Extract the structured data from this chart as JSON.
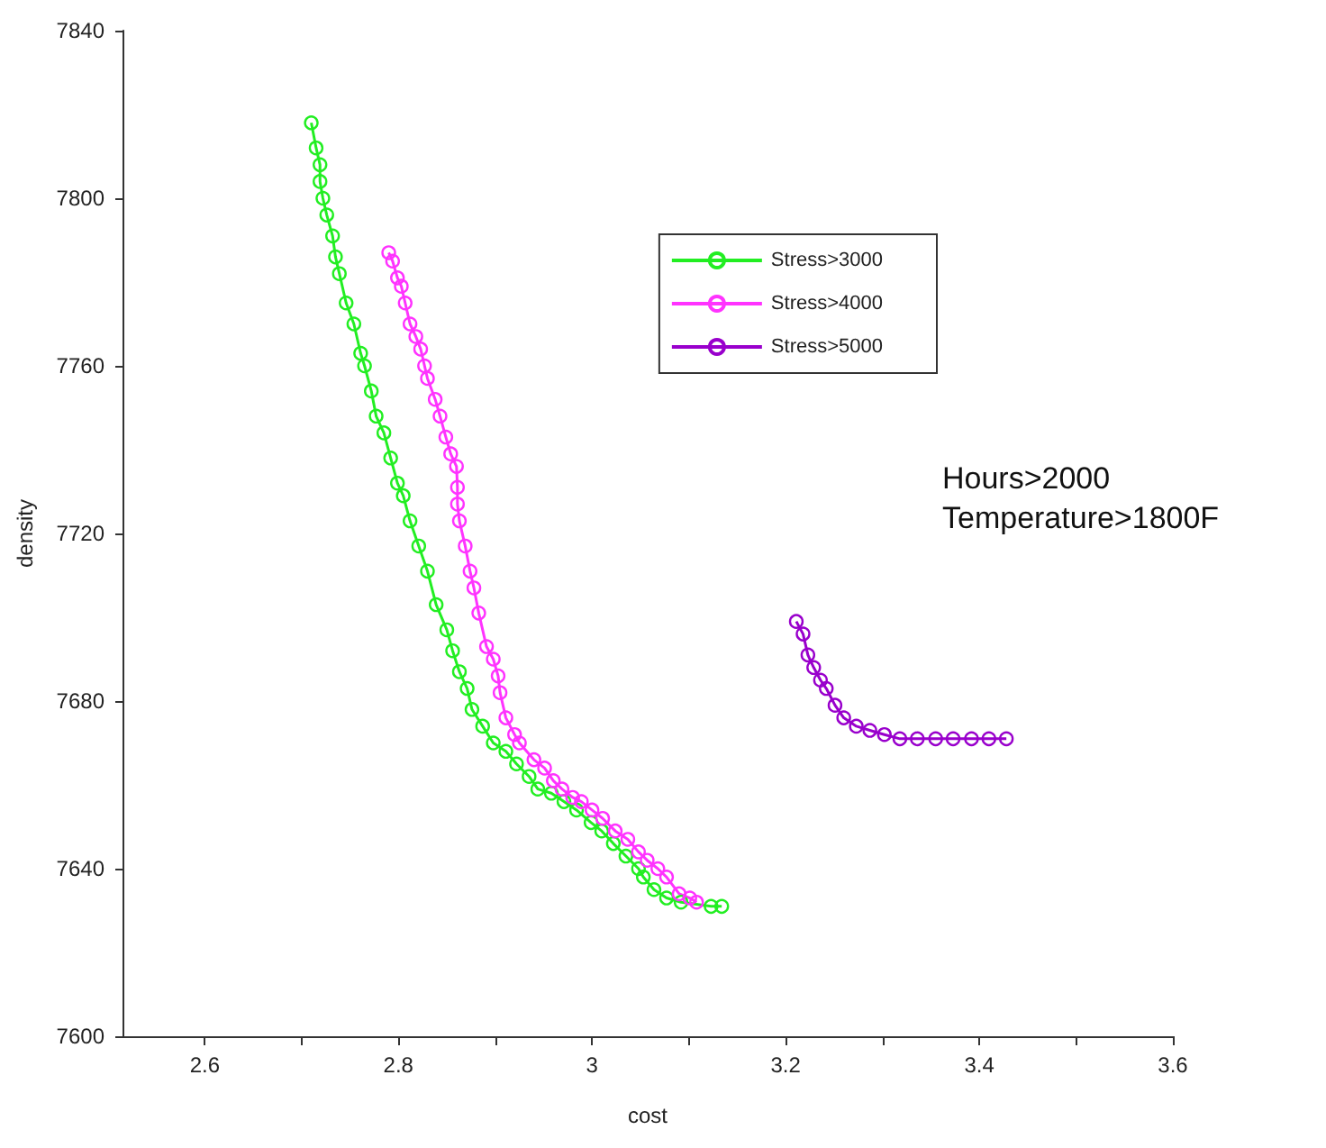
{
  "chart_data": {
    "type": "line",
    "xlabel": "cost",
    "ylabel": "density",
    "xlim": [
      2.515,
      3.6
    ],
    "ylim": [
      7600,
      7840
    ],
    "xticks": [
      2.6,
      {
        "value": 2.7,
        "label": null
      },
      2.8,
      {
        "value": 2.9,
        "label": null
      },
      {
        "value": 3.0,
        "label": "3"
      },
      {
        "value": 3.1,
        "label": null
      },
      3.2,
      {
        "value": 3.3,
        "label": null
      },
      3.4,
      {
        "value": 3.5,
        "label": null
      },
      3.6
    ],
    "yticks": [
      7600,
      7640,
      7680,
      7720,
      7760,
      7800,
      7840
    ],
    "grid": false,
    "legend": "top right",
    "marker": "circle",
    "line_style": "solid",
    "annotations": [
      "Hours>2000",
      "Temperature>1800F"
    ],
    "series": [
      {
        "name": "Stress>3000",
        "color": "#22ee22",
        "x": [
          2.71,
          2.715,
          2.719,
          2.719,
          2.722,
          2.726,
          2.732,
          2.735,
          2.739,
          2.746,
          2.754,
          2.761,
          2.765,
          2.772,
          2.777,
          2.785,
          2.792,
          2.799,
          2.805,
          2.812,
          2.821,
          2.83,
          2.839,
          2.85,
          2.856,
          2.863,
          2.871,
          2.876,
          2.887,
          2.898,
          2.911,
          2.922,
          2.935,
          2.944,
          2.958,
          2.971,
          2.984,
          2.999,
          3.01,
          3.022,
          3.035,
          3.048,
          3.053,
          3.064,
          3.077,
          3.092,
          3.123,
          3.134
        ],
        "values": [
          7818,
          7812,
          7808,
          7804,
          7800,
          7796,
          7791,
          7786,
          7782,
          7775,
          7770,
          7763,
          7760,
          7754,
          7748,
          7744,
          7738,
          7732,
          7729,
          7723,
          7717,
          7711,
          7703,
          7697,
          7692,
          7687,
          7683,
          7678,
          7674,
          7670,
          7668,
          7665,
          7662,
          7659,
          7658,
          7656,
          7654,
          7651,
          7649,
          7646,
          7643,
          7640,
          7638,
          7635,
          7633,
          7632,
          7631,
          7631
        ]
      },
      {
        "name": "Stress>4000",
        "color": "#ff33ff",
        "x": [
          2.79,
          2.794,
          2.799,
          2.803,
          2.807,
          2.812,
          2.818,
          2.823,
          2.827,
          2.83,
          2.838,
          2.843,
          2.849,
          2.854,
          2.86,
          2.861,
          2.861,
          2.863,
          2.869,
          2.874,
          2.878,
          2.883,
          2.891,
          2.898,
          2.903,
          2.905,
          2.911,
          2.92,
          2.925,
          2.94,
          2.951,
          2.96,
          2.969,
          2.98,
          2.989,
          3.0,
          3.011,
          3.024,
          3.037,
          3.048,
          3.057,
          3.068,
          3.077,
          3.09,
          3.101,
          3.108
        ],
        "values": [
          7787,
          7785,
          7781,
          7779,
          7775,
          7770,
          7767,
          7764,
          7760,
          7757,
          7752,
          7748,
          7743,
          7739,
          7736,
          7731,
          7727,
          7723,
          7717,
          7711,
          7707,
          7701,
          7693,
          7690,
          7686,
          7682,
          7676,
          7672,
          7670,
          7666,
          7664,
          7661,
          7659,
          7657,
          7656,
          7654,
          7652,
          7649,
          7647,
          7644,
          7642,
          7640,
          7638,
          7634,
          7633,
          7632
        ]
      },
      {
        "name": "Stress>5000",
        "color": "#9900cc",
        "x": [
          3.211,
          3.218,
          3.223,
          3.229,
          3.236,
          3.242,
          3.251,
          3.26,
          3.273,
          3.287,
          3.302,
          3.318,
          3.336,
          3.355,
          3.373,
          3.392,
          3.41,
          3.428
        ],
        "values": [
          7699,
          7696,
          7691,
          7688,
          7685,
          7683,
          7679,
          7676,
          7674,
          7673,
          7672,
          7671,
          7671,
          7671,
          7671,
          7671,
          7671,
          7671
        ]
      }
    ]
  }
}
